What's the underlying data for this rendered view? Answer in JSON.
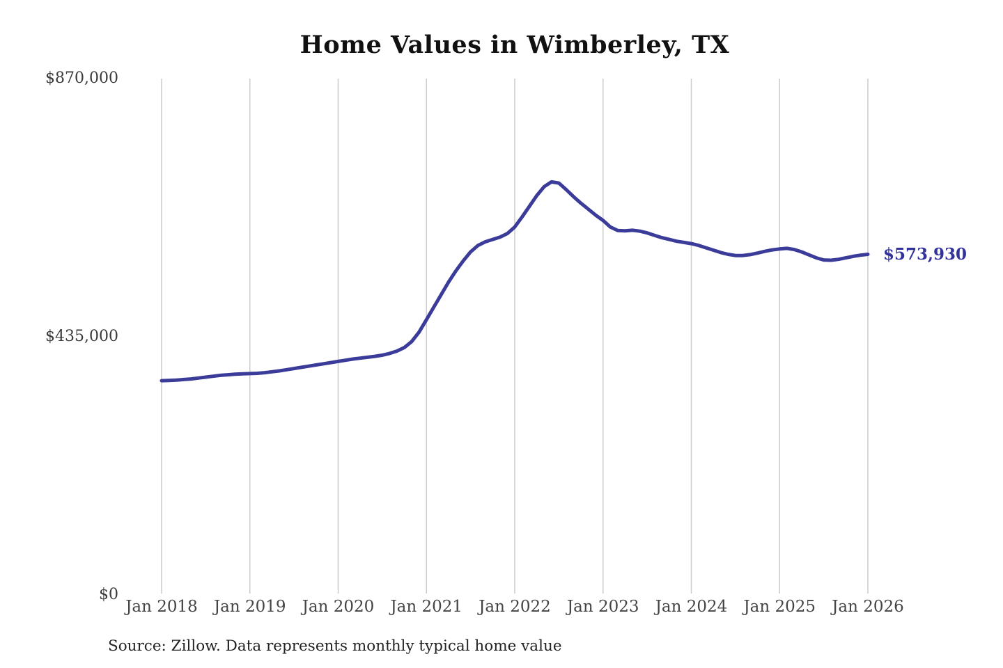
{
  "title": "Home Values in Wimberley, TX",
  "source_note": "Source: Zillow. Data represents monthly typical home value",
  "end_label": "$573,930",
  "colors": {
    "background": "#ffffff",
    "line": "#3b3b99",
    "grid": "#cccccc",
    "title": "#111111",
    "tick_label": "#3a3a3a",
    "end_label": "#32329b",
    "source": "#222222"
  },
  "chart_data": {
    "type": "line",
    "title": "Home Values in Wimberley, TX",
    "series_name": "Monthly typical home value",
    "interval": "monthly",
    "start_month": "2018-01",
    "end_month": "2026-01",
    "ylim": [
      0,
      870000
    ],
    "y_tick_labels": [
      "$0",
      "$435,000",
      "$870,000"
    ],
    "x_tick_labels": [
      "Jan 2018",
      "Jan 2019",
      "Jan 2020",
      "Jan 2021",
      "Jan 2022",
      "Jan 2023",
      "Jan 2024",
      "Jan 2025",
      "Jan 2026"
    ],
    "grid": "vertical-only",
    "legend": "none",
    "last_value": 573930,
    "last_value_label": "$573,930",
    "values": [
      361000,
      361500,
      362000,
      363000,
      364000,
      365500,
      367000,
      368500,
      370000,
      371000,
      372000,
      372500,
      373000,
      373500,
      374500,
      376000,
      377500,
      379500,
      381500,
      383500,
      385500,
      387500,
      389500,
      391500,
      393500,
      395500,
      397500,
      399000,
      400500,
      402000,
      404000,
      407000,
      411000,
      417000,
      427000,
      443000,
      464000,
      485000,
      506000,
      527000,
      546000,
      563000,
      578000,
      589000,
      595000,
      599000,
      603000,
      609000,
      620000,
      637000,
      655000,
      673000,
      688000,
      696000,
      694000,
      683000,
      671000,
      660000,
      650000,
      640000,
      631000,
      620000,
      614000,
      613500,
      614500,
      613000,
      610000,
      606000,
      602000,
      599000,
      596000,
      594000,
      592000,
      589000,
      585000,
      581000,
      577000,
      574000,
      572000,
      572000,
      573500,
      576000,
      579000,
      581500,
      583000,
      584000,
      582000,
      578000,
      573000,
      568000,
      564500,
      564000,
      565500,
      568000,
      570500,
      572500,
      573930
    ]
  }
}
